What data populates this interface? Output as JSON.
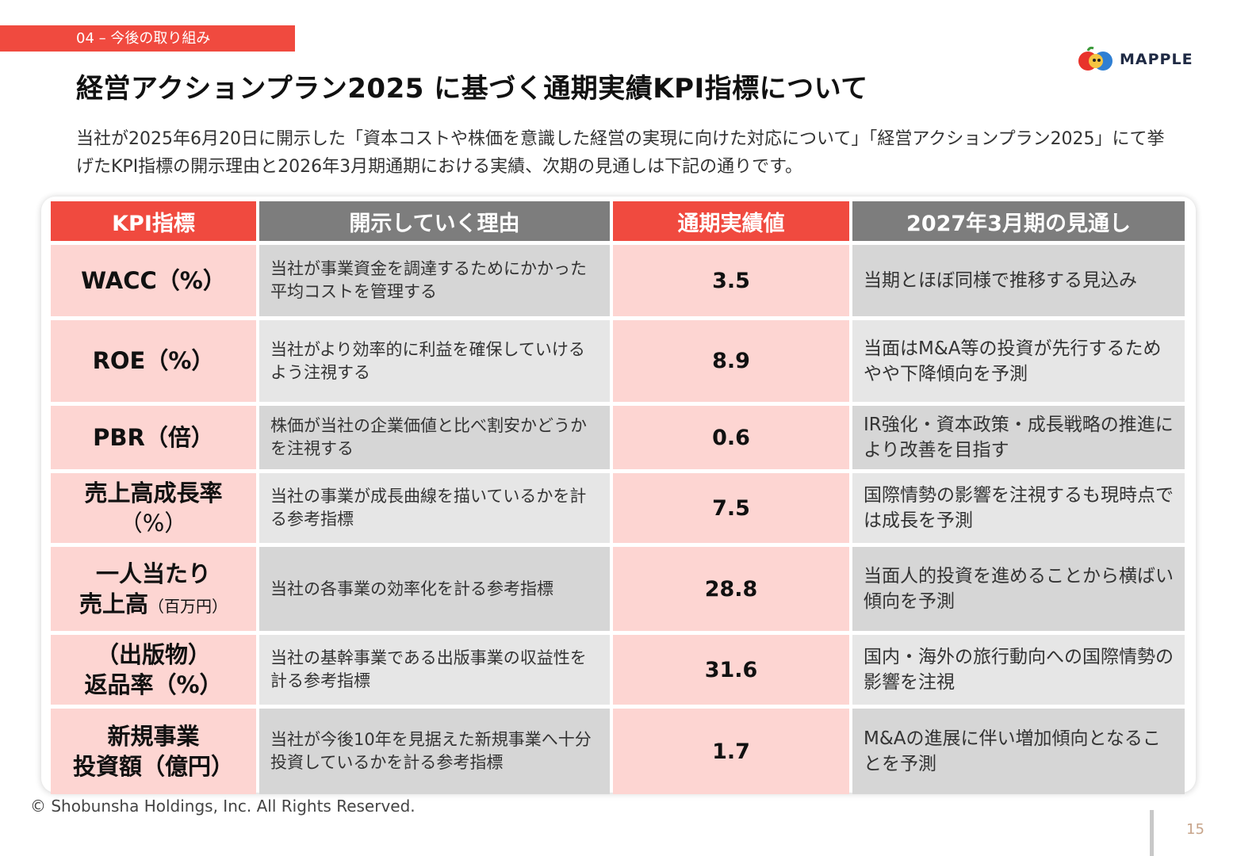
{
  "section_tag": "04 – 今後の取り組み",
  "logo": {
    "text": "MAPPLE",
    "icon": "apple-mascot-icon"
  },
  "title": "経営アクションプラン2025 に基づく通期実績KPI指標について",
  "lead": "当社が2025年6月20日に開示した「資本コストや株価を意識した経営の実現に向けた対応について」「経営アクションプラン2025」にて挙げたKPI指標の開示理由と2026年3月期通期における実績、次期の見通しは下記の通りです。",
  "table": {
    "headers": [
      "KPI指標",
      "開示していく理由",
      "通期実績値",
      "2027年3月期の見通し"
    ],
    "rows": [
      {
        "kpi_line1": "WACC（%）",
        "kpi_line2": "",
        "kpi_small": "",
        "reason": "当社が事業資金を調達するためにかかった平均コストを管理する",
        "value": "3.5",
        "outlook": "当期とほぼ同様で推移する見込み"
      },
      {
        "kpi_line1": "ROE（%）",
        "kpi_line2": "",
        "kpi_small": "",
        "reason": "当社がより効率的に利益を確保していけるよう注視する",
        "value": "8.9",
        "outlook": "当面はM&A等の投資が先行するためやや下降傾向を予測"
      },
      {
        "kpi_line1": "PBR（倍）",
        "kpi_line2": "",
        "kpi_small": "",
        "reason": "株価が当社の企業価値と比べ割安かどうかを注視する",
        "value": "0.6",
        "outlook": "IR強化・資本政策・成長戦略の推進により改善を目指す"
      },
      {
        "kpi_line1": "売上高成長率",
        "kpi_line2": "（%）",
        "kpi_small": "",
        "reason": "当社の事業が成長曲線を描いているかを計る参考指標",
        "value": "7.5",
        "outlook": "国際情勢の影響を注視するも現時点では成長を予測"
      },
      {
        "kpi_line1": "一人当たり",
        "kpi_line2": "売上高",
        "kpi_small": "（百万円）",
        "reason": "当社の各事業の効率化を計る参考指標",
        "value": "28.8",
        "outlook": "当面人的投資を進めることから横ばい傾向を予測"
      },
      {
        "kpi_line1": "（出版物）",
        "kpi_line2": "返品率（%）",
        "kpi_small": "",
        "reason": "当社の基幹事業である出版事業の収益性を計る参考指標",
        "value": "31.6",
        "outlook": "国内・海外の旅行動向への国際情勢の影響を注視"
      },
      {
        "kpi_line1": "新規事業",
        "kpi_line2": "投資額（億円）",
        "kpi_small": "",
        "reason": "当社が今後10年を見据えた新規事業へ十分投資しているかを計る参考指標",
        "value": "1.7",
        "outlook": "M&Aの進展に伴い増加傾向となることを予測"
      }
    ]
  },
  "footer": {
    "copyright": "© Shobunsha Holdings, Inc. All Rights Reserved.",
    "page": "15"
  },
  "colors": {
    "accent_red": "#f04a3f",
    "pink": "#fdd5d2",
    "header_grey": "#7d7d7d"
  }
}
